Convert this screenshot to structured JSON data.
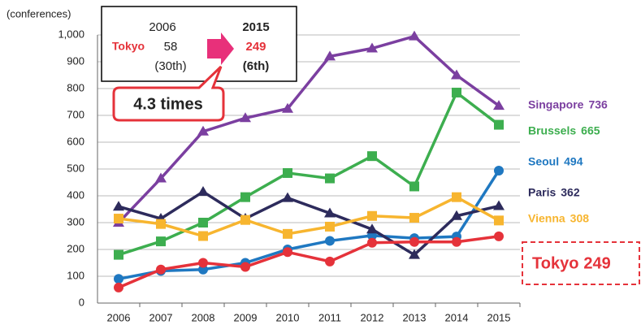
{
  "chart_data": {
    "type": "line",
    "y_axis_label": "(conferences)",
    "categories": [
      "2006",
      "2007",
      "2008",
      "2009",
      "2010",
      "2011",
      "2012",
      "2013",
      "2014",
      "2015"
    ],
    "ylim": [
      0,
      1000
    ],
    "yticks": [
      0,
      100,
      200,
      300,
      400,
      500,
      600,
      700,
      800,
      900,
      {
        "value": 1000,
        "label": "1,000"
      }
    ],
    "grid": true,
    "series": [
      {
        "name": "Singapore",
        "color": "#7b3fa0",
        "marker": "triangle",
        "values": [
          300,
          465,
          640,
          690,
          725,
          920,
          950,
          995,
          850,
          736
        ]
      },
      {
        "name": "Brussels",
        "color": "#3dae4f",
        "marker": "square",
        "values": [
          180,
          230,
          300,
          395,
          485,
          465,
          548,
          435,
          785,
          665
        ]
      },
      {
        "name": "Seoul",
        "color": "#1f78c1",
        "marker": "circle",
        "values": [
          90,
          120,
          125,
          150,
          200,
          232,
          252,
          242,
          248,
          494
        ]
      },
      {
        "name": "Paris",
        "color": "#2d2b5c",
        "marker": "triangle",
        "values": [
          360,
          315,
          415,
          315,
          392,
          335,
          275,
          180,
          325,
          362
        ]
      },
      {
        "name": "Vienna",
        "color": "#f7b52f",
        "marker": "square",
        "values": [
          315,
          295,
          250,
          310,
          258,
          285,
          325,
          318,
          395,
          308
        ]
      },
      {
        "name": "Tokyo",
        "color": "#e5323a",
        "marker": "circle",
        "values": [
          58,
          125,
          150,
          135,
          190,
          155,
          225,
          228,
          228,
          249
        ]
      }
    ],
    "annotation": {
      "year_from": "2006",
      "city": "Tokyo",
      "value_from": "58",
      "rank_from": "(30th)",
      "year_to": "2015",
      "value_to": "249",
      "rank_to": "(6th)",
      "callout": "4.3 times"
    }
  }
}
